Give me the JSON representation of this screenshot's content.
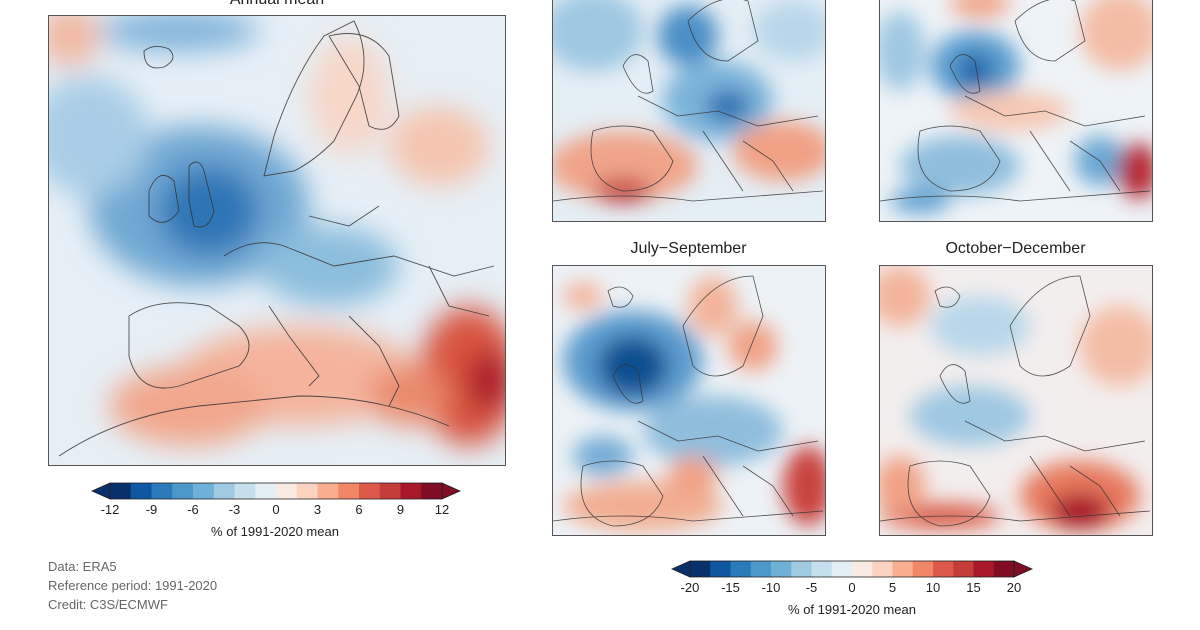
{
  "panels": {
    "annual": {
      "title": "Annual mean"
    },
    "q1": {
      "title": ""
    },
    "q2": {
      "title": ""
    },
    "q3": {
      "title": "July−September"
    },
    "q4": {
      "title": "October−December"
    }
  },
  "colorbars": {
    "annual": {
      "ticks": [
        "-12",
        "-9",
        "-6",
        "-3",
        "0",
        "3",
        "6",
        "9",
        "12"
      ],
      "label": "% of 1991-2020 mean",
      "range": [
        -12,
        12
      ],
      "extend": "both"
    },
    "seasonal": {
      "ticks": [
        "-20",
        "-15",
        "-10",
        "-5",
        "0",
        "5",
        "10",
        "15",
        "20"
      ],
      "label": "% of 1991-2020 mean",
      "range": [
        -20,
        20
      ],
      "extend": "both"
    }
  },
  "palette": [
    "#08306b",
    "#0f57a0",
    "#2b7bba",
    "#4b98c9",
    "#6fb0d6",
    "#9fcae1",
    "#c5dfec",
    "#e4eef5",
    "#f9ebe4",
    "#fcd3c0",
    "#f9ae90",
    "#f18767",
    "#dd5a4b",
    "#c43d3b",
    "#a8182b",
    "#7f0d23"
  ],
  "metadata": {
    "data": "Data: ERA5",
    "reference": "Reference period: 1991-2020",
    "credit": "Credit: C3S/ECMWF"
  }
}
